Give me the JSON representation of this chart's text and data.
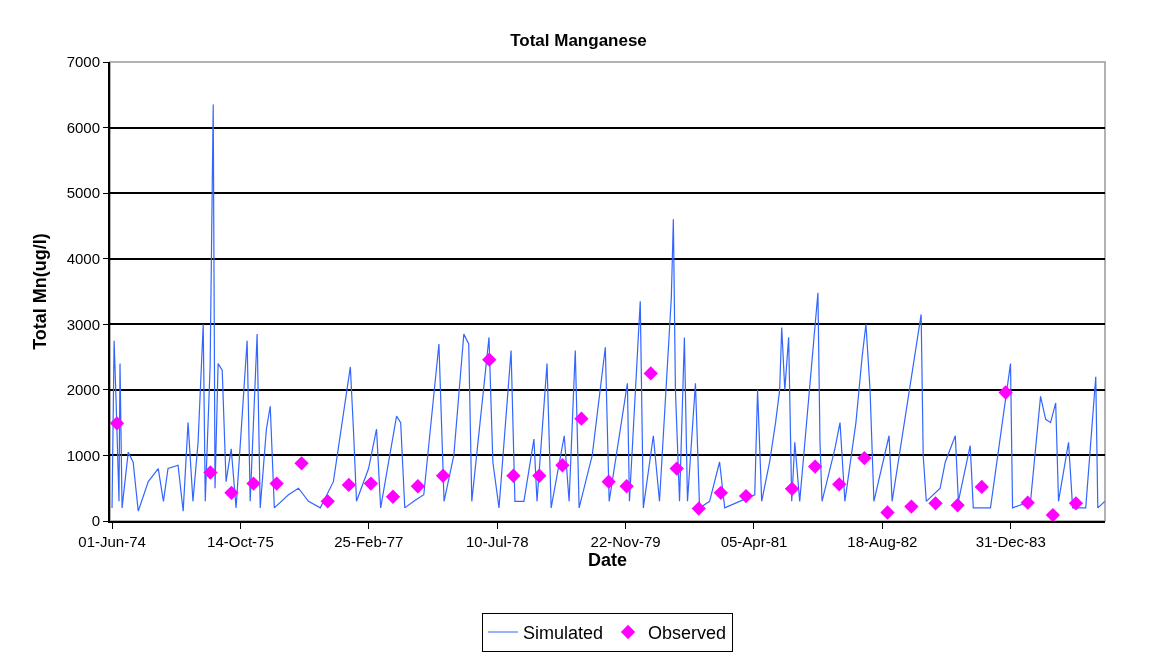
{
  "chart_data": {
    "type": "line",
    "title": "Total Manganese",
    "xlabel": "Date",
    "ylabel": "Total Mn(ug/l)",
    "xlim": [
      "1974-05-24",
      "1985-01-01"
    ],
    "xticks": [
      {
        "value": "1974-06-01",
        "label": "01-Jun-74"
      },
      {
        "value": "1975-10-14",
        "label": "14-Oct-75"
      },
      {
        "value": "1977-02-25",
        "label": "25-Feb-77"
      },
      {
        "value": "1978-07-10",
        "label": "10-Jul-78"
      },
      {
        "value": "1979-11-22",
        "label": "22-Nov-79"
      },
      {
        "value": "1981-04-05",
        "label": "05-Apr-81"
      },
      {
        "value": "1982-08-18",
        "label": "18-Aug-82"
      },
      {
        "value": "1983-12-31",
        "label": "31-Dec-83"
      }
    ],
    "ylim": [
      0,
      7000
    ],
    "yticks": [
      0,
      1000,
      2000,
      3000,
      4000,
      5000,
      6000,
      7000
    ],
    "grid": "y",
    "legend": "bottom",
    "series": [
      {
        "name": "Simulated",
        "color": "#3366ff",
        "marker": "none",
        "line_style": "solid",
        "x": [
          "1974-06-01",
          "1974-06-09",
          "1974-06-17",
          "1974-06-28",
          "1974-07-02",
          "1974-07-10",
          "1974-08-03",
          "1974-08-22",
          "1974-09-11",
          "1974-10-20",
          "1974-11-28",
          "1974-12-18",
          "1975-01-05",
          "1975-02-13",
          "1975-03-05",
          "1975-03-24",
          "1975-04-12",
          "1975-05-02",
          "1975-05-22",
          "1975-05-30",
          "1975-06-18",
          "1975-06-30",
          "1975-07-07",
          "1975-07-19",
          "1975-08-04",
          "1975-08-19",
          "1975-09-08",
          "1975-09-27",
          "1975-11-09",
          "1975-11-21",
          "1975-12-18",
          "1975-12-30",
          "1976-01-23",
          "1976-02-07",
          "1976-02-23",
          "1976-04-18",
          "1976-05-27",
          "1976-07-05",
          "1976-08-20",
          "1976-10-10",
          "1976-12-15",
          "1976-12-27",
          "1977-01-08",
          "1977-02-24",
          "1977-03-27",
          "1977-04-12",
          "1977-06-13",
          "1977-06-29",
          "1977-07-15",
          "1977-08-19",
          "1977-09-27",
          "1977-11-25",
          "1977-12-15",
          "1978-01-22",
          "1978-03-02",
          "1978-03-21",
          "1978-04-02",
          "1978-06-08",
          "1978-06-23",
          "1978-07-17",
          "1978-09-02",
          "1978-09-17",
          "1978-10-22",
          "1978-11-30",
          "1978-12-12",
          "1979-01-20",
          "1979-02-05",
          "1979-03-28",
          "1979-04-16",
          "1979-05-10",
          "1979-05-25",
          "1979-07-15",
          "1979-09-04",
          "1979-09-19",
          "1979-11-29",
          "1979-12-07",
          "1980-01-18",
          "1980-01-30",
          "1980-03-09",
          "1980-04-02",
          "1980-05-18",
          "1980-05-26",
          "1980-06-03",
          "1980-06-19",
          "1980-07-08",
          "1980-07-20",
          "1980-08-20",
          "1980-09-05",
          "1980-10-14",
          "1980-11-22",
          "1980-12-12",
          "1981-02-08",
          "1981-04-08",
          "1981-04-19",
          "1981-05-05",
          "1981-06-05",
          "1981-06-28",
          "1981-07-14",
          "1981-07-22",
          "1981-08-03",
          "1981-08-18",
          "1981-08-30",
          "1981-09-11",
          "1981-09-30",
          "1981-12-10",
          "1981-12-18",
          "1981-12-26",
          "1982-02-14",
          "1982-03-06",
          "1982-03-25",
          "1982-05-07",
          "1982-05-31",
          "1982-06-15",
          "1982-07-01",
          "1982-07-16",
          "1982-09-13",
          "1982-09-25",
          "1983-01-16",
          "1983-01-24",
          "1983-02-05",
          "1983-03-31",
          "1983-04-20",
          "1983-05-29",
          "1983-06-10",
          "1983-07-26",
          "1983-08-07",
          "1983-10-13",
          "1983-12-30",
          "1984-01-07",
          "1984-03-17",
          "1984-04-25",
          "1984-05-15",
          "1984-06-03",
          "1984-06-23",
          "1984-07-04",
          "1984-08-12",
          "1984-08-28",
          "1984-10-18",
          "1984-11-26",
          "1984-12-04",
          "1984-12-31"
        ],
        "values": [
          200,
          2750,
          1800,
          300,
          2400,
          200,
          1050,
          900,
          150,
          600,
          800,
          300,
          800,
          850,
          150,
          1500,
          300,
          1200,
          3000,
          300,
          2370,
          6350,
          500,
          2400,
          2300,
          600,
          1100,
          200,
          2750,
          300,
          2850,
          200,
          1400,
          1750,
          200,
          400,
          500,
          300,
          200,
          600,
          2350,
          1400,
          300,
          800,
          1400,
          200,
          1600,
          1500,
          200,
          300,
          400,
          2700,
          300,
          1000,
          2850,
          2700,
          300,
          2800,
          900,
          200,
          2600,
          300,
          300,
          1250,
          300,
          2400,
          200,
          1300,
          300,
          2600,
          200,
          1000,
          2650,
          300,
          2100,
          300,
          3350,
          200,
          1300,
          300,
          3400,
          4600,
          2000,
          300,
          2800,
          300,
          2100,
          200,
          300,
          900,
          200,
          300,
          400,
          2000,
          300,
          900,
          1500,
          2000,
          2950,
          2000,
          2800,
          300,
          1200,
          300,
          3480,
          1200,
          300,
          1100,
          1500,
          300,
          1500,
          2500,
          3000,
          2000,
          300,
          1300,
          300,
          3150,
          1000,
          300,
          500,
          900,
          1300,
          300,
          1150,
          200,
          200,
          2400,
          200,
          300,
          1900,
          1550,
          1500,
          1800,
          300,
          1200,
          200,
          200,
          2200,
          200,
          300
        ]
      },
      {
        "name": "Observed",
        "type": "scatter",
        "color": "#ff00ff",
        "marker": "diamond",
        "x": [
          "1974-06-20",
          "1975-06-19",
          "1975-09-09",
          "1975-12-04",
          "1976-03-03",
          "1976-06-08",
          "1976-09-18",
          "1976-12-09",
          "1977-03-05",
          "1977-05-30",
          "1977-09-04",
          "1977-12-11",
          "1978-06-09",
          "1978-09-11",
          "1978-12-21",
          "1979-03-21",
          "1979-06-03",
          "1979-09-17",
          "1979-11-26",
          "1980-02-28",
          "1980-06-08",
          "1980-09-02",
          "1980-11-27",
          "1981-03-05",
          "1981-08-31",
          "1981-11-29",
          "1982-03-03",
          "1982-06-09",
          "1982-09-07",
          "1982-12-09",
          "1983-03-13",
          "1983-06-07",
          "1983-09-09",
          "1983-12-11",
          "1984-03-06",
          "1984-06-12",
          "1984-09-10"
        ],
        "values": [
          1490,
          740,
          430,
          570,
          570,
          880,
          300,
          550,
          570,
          370,
          530,
          690,
          2460,
          690,
          690,
          850,
          1560,
          600,
          530,
          2250,
          800,
          190,
          430,
          380,
          490,
          830,
          560,
          960,
          130,
          220,
          270,
          240,
          520,
          1960,
          280,
          90,
          270
        ]
      }
    ]
  }
}
